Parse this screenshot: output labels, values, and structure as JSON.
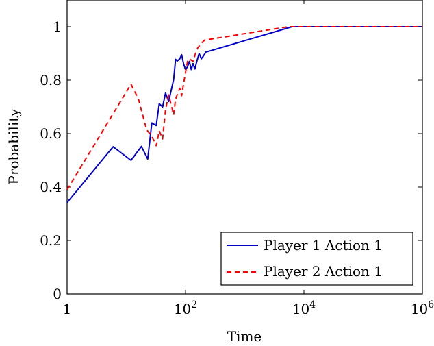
{
  "chart_data": {
    "type": "line",
    "xlabel": "Time",
    "ylabel": "Probability",
    "xscale": "log",
    "xlim": [
      1,
      1000000
    ],
    "ylim": [
      0,
      1.1
    ],
    "grid": false,
    "legend_position": "bottom-right",
    "x_ticks": [
      {
        "value": 1,
        "base": "1",
        "exp": ""
      },
      {
        "value": 100,
        "base": "10",
        "exp": "2"
      },
      {
        "value": 10000,
        "base": "10",
        "exp": "4"
      },
      {
        "value": 1000000,
        "base": "10",
        "exp": "6"
      }
    ],
    "y_ticks": [
      {
        "value": 0,
        "label": "0"
      },
      {
        "value": 0.2,
        "label": "0.2"
      },
      {
        "value": 0.4,
        "label": "0.4"
      },
      {
        "value": 0.6,
        "label": "0.6"
      },
      {
        "value": 0.8,
        "label": "0.8"
      },
      {
        "value": 1,
        "label": "1"
      }
    ],
    "series": [
      {
        "name": "Player 1 Action 1",
        "color": "#0000cc",
        "dash": "solid",
        "points": [
          [
            1,
            0.342
          ],
          [
            6,
            0.551
          ],
          [
            12,
            0.5
          ],
          [
            18,
            0.552
          ],
          [
            23,
            0.505
          ],
          [
            27,
            0.64
          ],
          [
            32,
            0.63
          ],
          [
            36,
            0.712
          ],
          [
            41,
            0.7
          ],
          [
            46,
            0.752
          ],
          [
            52,
            0.72
          ],
          [
            57,
            0.76
          ],
          [
            63,
            0.802
          ],
          [
            68,
            0.878
          ],
          [
            73,
            0.872
          ],
          [
            80,
            0.88
          ],
          [
            86,
            0.895
          ],
          [
            93,
            0.86
          ],
          [
            100,
            0.84
          ],
          [
            108,
            0.85
          ],
          [
            116,
            0.87
          ],
          [
            125,
            0.84
          ],
          [
            134,
            0.862
          ],
          [
            144,
            0.842
          ],
          [
            155,
            0.87
          ],
          [
            170,
            0.9
          ],
          [
            185,
            0.88
          ],
          [
            200,
            0.89
          ],
          [
            220,
            0.905
          ],
          [
            6300,
            1.0
          ],
          [
            1000000,
            1.0
          ]
        ]
      },
      {
        "name": "Player 2 Action 1",
        "color": "#ff0000",
        "dash": "dashed",
        "points": [
          [
            1,
            0.39
          ],
          [
            12,
            0.785
          ],
          [
            16,
            0.73
          ],
          [
            22,
            0.615
          ],
          [
            27,
            0.59
          ],
          [
            32,
            0.555
          ],
          [
            36,
            0.61
          ],
          [
            41,
            0.58
          ],
          [
            46,
            0.69
          ],
          [
            52,
            0.745
          ],
          [
            57,
            0.71
          ],
          [
            63,
            0.67
          ],
          [
            68,
            0.73
          ],
          [
            80,
            0.77
          ],
          [
            86,
            0.742
          ],
          [
            95,
            0.8
          ],
          [
            108,
            0.87
          ],
          [
            116,
            0.88
          ],
          [
            134,
            0.87
          ],
          [
            150,
            0.905
          ],
          [
            160,
            0.92
          ],
          [
            180,
            0.935
          ],
          [
            210,
            0.95
          ],
          [
            5400,
            1.0
          ],
          [
            1000000,
            1.0
          ]
        ]
      }
    ]
  }
}
